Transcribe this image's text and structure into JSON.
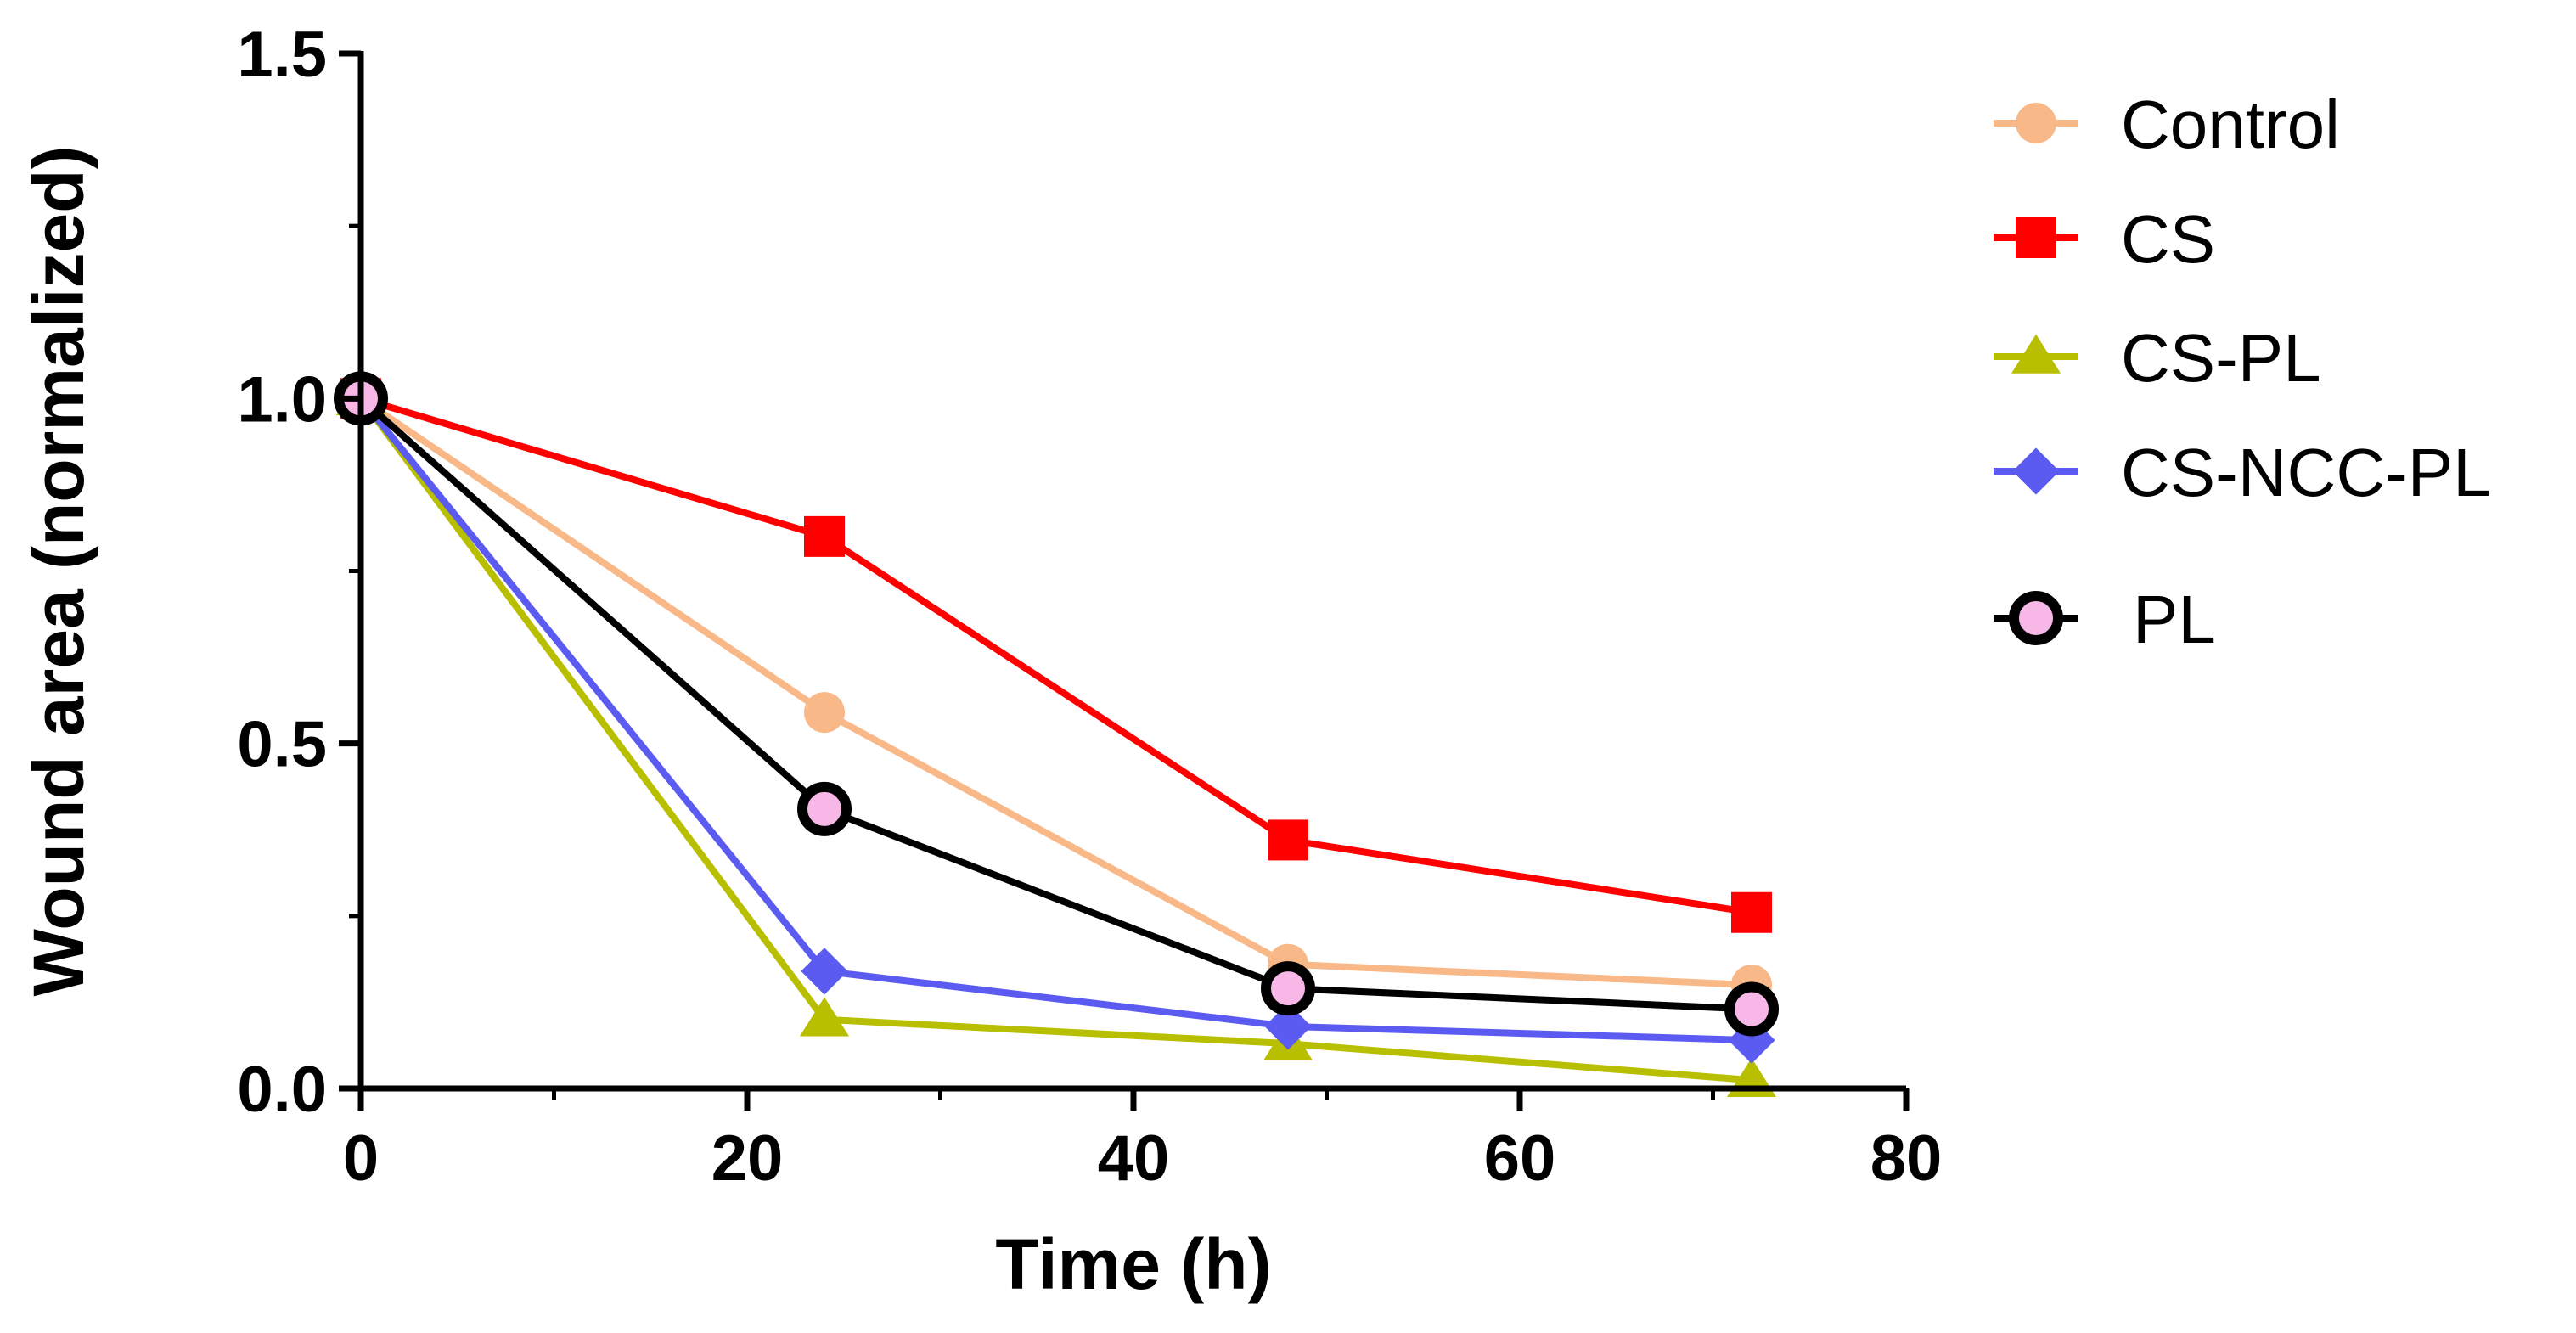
{
  "chart_data": {
    "type": "line",
    "title": "",
    "xlabel": "Time (h)",
    "ylabel": "Wound area (normalized)",
    "xlim": [
      0,
      80
    ],
    "ylim": [
      0,
      1.5
    ],
    "x_ticks": [
      "0",
      "20",
      "40",
      "60",
      "80"
    ],
    "y_ticks": [
      "0.0",
      "0.5",
      "1.0",
      "1.5"
    ],
    "grid": false,
    "legend_position": "right",
    "x": [
      0,
      24,
      48,
      72
    ],
    "series": [
      {
        "name": "Control",
        "values": [
          1.0,
          0.545,
          0.18,
          0.15
        ],
        "color": "#F9B888",
        "marker": "circle"
      },
      {
        "name": "CS",
        "values": [
          1.0,
          0.8,
          0.36,
          0.255
        ],
        "color": "#FF0000",
        "marker": "square"
      },
      {
        "name": "CS-PL",
        "values": [
          1.0,
          0.1,
          0.065,
          0.012
        ],
        "color": "#B8BE00",
        "marker": "triangle"
      },
      {
        "name": "CS-NCC-PL",
        "values": [
          1.0,
          0.17,
          0.09,
          0.07
        ],
        "color": "#5B5BF2",
        "marker": "diamond"
      },
      {
        "name": "PL",
        "values": [
          1.0,
          0.405,
          0.145,
          0.115
        ],
        "color": "#000000",
        "marker": "ring",
        "fill": "#F7B8E8"
      }
    ]
  }
}
